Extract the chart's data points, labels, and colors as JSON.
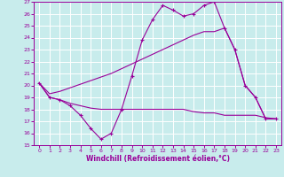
{
  "xlabel": "Windchill (Refroidissement éolien,°C)",
  "xlim": [
    -0.5,
    23.5
  ],
  "ylim": [
    15,
    27
  ],
  "yticks": [
    15,
    16,
    17,
    18,
    19,
    20,
    21,
    22,
    23,
    24,
    25,
    26,
    27
  ],
  "xticks": [
    0,
    1,
    2,
    3,
    4,
    5,
    6,
    7,
    8,
    9,
    10,
    11,
    12,
    13,
    14,
    15,
    16,
    17,
    18,
    19,
    20,
    21,
    22,
    23
  ],
  "bg_color": "#c8ecec",
  "line_color": "#990099",
  "grid_color": "#ffffff",
  "series1_x": [
    0,
    1,
    2,
    3,
    4,
    5,
    6,
    7,
    8,
    9,
    10,
    11,
    12,
    13,
    14,
    15,
    16,
    17,
    18,
    19,
    20,
    21,
    22,
    23
  ],
  "series1_y": [
    20.2,
    19.0,
    18.8,
    18.3,
    17.5,
    16.4,
    15.5,
    16.0,
    18.0,
    20.8,
    23.8,
    25.5,
    26.7,
    26.3,
    25.8,
    26.0,
    26.7,
    27.0,
    24.8,
    23.0,
    20.0,
    19.0,
    17.2,
    17.2
  ],
  "series2_x": [
    0,
    1,
    2,
    3,
    4,
    5,
    6,
    7,
    8,
    9,
    10,
    11,
    12,
    13,
    14,
    15,
    16,
    17,
    18,
    19,
    20,
    21,
    22,
    23
  ],
  "series2_y": [
    20.2,
    19.3,
    19.5,
    19.8,
    20.1,
    20.4,
    20.7,
    21.0,
    21.4,
    21.8,
    22.2,
    22.6,
    23.0,
    23.4,
    23.8,
    24.2,
    24.5,
    24.5,
    24.8,
    23.0,
    20.0,
    19.0,
    17.2,
    17.2
  ],
  "series3_x": [
    0,
    1,
    2,
    3,
    4,
    5,
    6,
    7,
    8,
    9,
    10,
    11,
    12,
    13,
    14,
    15,
    16,
    17,
    18,
    19,
    20,
    21,
    22,
    23
  ],
  "series3_y": [
    20.2,
    19.0,
    18.8,
    18.5,
    18.3,
    18.1,
    18.0,
    18.0,
    18.0,
    18.0,
    18.0,
    18.0,
    18.0,
    18.0,
    18.0,
    17.8,
    17.7,
    17.7,
    17.5,
    17.5,
    17.5,
    17.5,
    17.3,
    17.2
  ]
}
